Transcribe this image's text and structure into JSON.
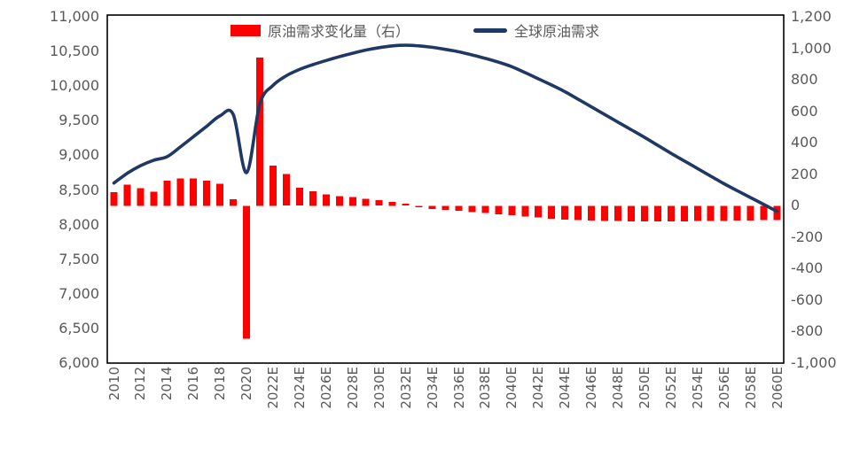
{
  "chart_data": {
    "type": "bar",
    "subtype": "combo-bar-line",
    "title": "",
    "x": [
      2010,
      2011,
      2012,
      2013,
      2014,
      2015,
      2016,
      2017,
      2018,
      2019,
      2020,
      2021,
      2022,
      2023,
      2024,
      2025,
      2026,
      2027,
      2028,
      2029,
      2030,
      2031,
      2032,
      2033,
      2034,
      2035,
      2036,
      2037,
      2038,
      2039,
      2040,
      2041,
      2042,
      2043,
      2044,
      2045,
      2046,
      2047,
      2048,
      2049,
      2050,
      2051,
      2052,
      2053,
      2054,
      2055,
      2056,
      2057,
      2058,
      2059,
      2060
    ],
    "x_tick_labels": [
      "2010",
      "2012",
      "2014",
      "2016",
      "2018",
      "2020",
      "2022E",
      "2024E",
      "2026E",
      "2028E",
      "2030E",
      "2032E",
      "2034E",
      "2036E",
      "2038E",
      "2040E",
      "2042E",
      "2044E",
      "2046E",
      "2048E",
      "2050E",
      "2052E",
      "2054E",
      "2056E",
      "2058E",
      "2060E"
    ],
    "series": [
      {
        "name": "原油需求变化量（右）",
        "type": "bar",
        "axis": "right",
        "color": "#ff0000",
        "values": [
          85,
          135,
          112,
          90,
          158,
          172,
          172,
          158,
          140,
          40,
          -845,
          940,
          255,
          200,
          115,
          92,
          72,
          62,
          55,
          45,
          34,
          23,
          12,
          -10,
          -20,
          -27,
          -33,
          -40,
          -47,
          -54,
          -61,
          -68,
          -75,
          -82,
          -88,
          -92,
          -95,
          -97,
          -98,
          -99,
          -100,
          -100,
          -100,
          -99,
          -98,
          -97,
          -96,
          -95,
          -94,
          -92,
          -90
        ]
      },
      {
        "name": "全球原油需求",
        "type": "line",
        "axis": "left",
        "color": "#1f3864",
        "values": [
          8600,
          8740,
          8850,
          8930,
          8980,
          9120,
          9270,
          9420,
          9570,
          9590,
          8750,
          9740,
          10010,
          10150,
          10240,
          10310,
          10370,
          10425,
          10475,
          10520,
          10555,
          10580,
          10590,
          10580,
          10560,
          10530,
          10495,
          10450,
          10400,
          10345,
          10280,
          10195,
          10105,
          10015,
          9920,
          9810,
          9700,
          9590,
          9480,
          9370,
          9260,
          9145,
          9030,
          8920,
          8810,
          8700,
          8590,
          8490,
          8390,
          8290,
          8190
        ]
      }
    ],
    "left_axis": {
      "min": 6000,
      "max": 11000,
      "step": 500,
      "ticks": [
        "11,000",
        "10,500",
        "10,000",
        "9,500",
        "9,000",
        "8,500",
        "8,000",
        "7,500",
        "7,000",
        "6,500",
        "6,000"
      ]
    },
    "right_axis": {
      "min": -1000,
      "max": 1200,
      "step": 200,
      "ticks": [
        "1,200",
        "1,000",
        "800",
        "600",
        "400",
        "200",
        "0",
        "-200",
        "-400",
        "-600",
        "-800",
        "-1,000"
      ]
    },
    "legend_position": "top-center",
    "grid": false,
    "plot_border_color": "#000000",
    "background": "#ffffff"
  }
}
